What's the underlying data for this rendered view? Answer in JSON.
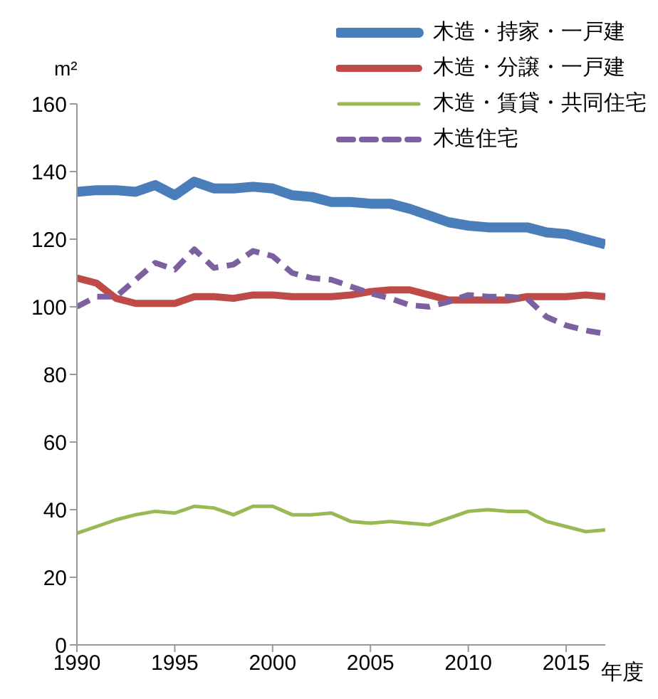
{
  "chart_data": {
    "type": "line",
    "ylabel": "m²",
    "xlabel": "年度",
    "x": [
      1990,
      1991,
      1992,
      1993,
      1994,
      1995,
      1996,
      1997,
      1998,
      1999,
      2000,
      2001,
      2002,
      2003,
      2004,
      2005,
      2006,
      2007,
      2008,
      2009,
      2010,
      2011,
      2012,
      2013,
      2014,
      2015,
      2016,
      2017
    ],
    "series": [
      {
        "name": "木造・持家・一戸建",
        "color": "#4a7ebb",
        "line_style": "solid",
        "values": [
          134,
          134.5,
          134.5,
          134,
          136,
          133,
          137,
          135,
          135,
          135.5,
          135,
          133,
          132.5,
          131,
          131,
          130.5,
          130.5,
          129,
          127,
          125,
          124,
          123.5,
          123.5,
          123.5,
          122,
          121.5,
          120,
          118.5
        ]
      },
      {
        "name": "木造・分譲・一戸建",
        "color": "#be4b48",
        "line_style": "solid",
        "values": [
          108.5,
          107,
          102.5,
          101,
          101,
          101,
          103,
          103,
          102.5,
          103.5,
          103.5,
          103,
          103,
          103,
          103.5,
          104.5,
          105,
          105,
          103.5,
          102,
          102,
          102,
          102,
          103,
          103,
          103,
          103.5,
          103
        ]
      },
      {
        "name": "木造・賃貸・共同住宅",
        "color": "#98b954",
        "line_style": "solid",
        "values": [
          33,
          35,
          37,
          38.5,
          39.5,
          39,
          41,
          40.5,
          38.5,
          41,
          41,
          38.5,
          38.5,
          39,
          36.5,
          36,
          36.5,
          36,
          35.5,
          37.5,
          39.5,
          40,
          39.5,
          39.5,
          36.5,
          35,
          33.5,
          34
        ]
      },
      {
        "name": "木造住宅",
        "color": "#7d60a0",
        "line_style": "dashed",
        "values": [
          100,
          103,
          103,
          108,
          113,
          111,
          117,
          111.5,
          112.5,
          116.5,
          115,
          110,
          108.5,
          108,
          106,
          104,
          102.5,
          100.5,
          100,
          101.5,
          103.5,
          103,
          103,
          102.5,
          97,
          94.5,
          93,
          92
        ]
      }
    ],
    "xlim": [
      1990,
      2017
    ],
    "xticks": [
      1990,
      1995,
      2000,
      2005,
      2010,
      2015
    ],
    "ylim": [
      0,
      160
    ],
    "yticks": [
      0,
      20,
      40,
      60,
      80,
      100,
      120,
      140,
      160
    ],
    "grid": false,
    "legend": "top right",
    "marker": "none"
  }
}
